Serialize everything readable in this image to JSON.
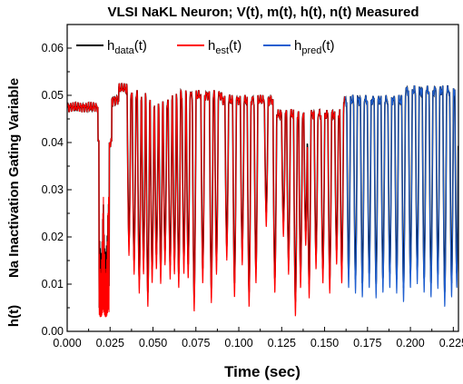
{
  "chart_data": {
    "type": "line",
    "title": "VLSI   NaKL Neuron; V(t), m(t), h(t), n(t) Measured",
    "xlabel": "Time   (sec)",
    "ylabel": "Na Inactivation Gating Variable",
    "ylabel_short": "h(t)",
    "xlim": [
      0.0,
      0.228
    ],
    "ylim": [
      0.0,
      0.065
    ],
    "xticks": [
      "0.000",
      "0.025",
      "0.050",
      "0.075",
      "0.100",
      "0.125",
      "0.150",
      "0.175",
      "0.200",
      "0.225"
    ],
    "yticks": [
      "0.00",
      "0.01",
      "0.02",
      "0.03",
      "0.04",
      "0.05",
      "0.06"
    ],
    "legend": {
      "position": "top-left",
      "entries": [
        {
          "base": "h",
          "sub": "data",
          "suffix": "(t)",
          "color": "#000000"
        },
        {
          "base": "h",
          "sub": "est",
          "suffix": "(t)",
          "color": "#ff0000"
        },
        {
          "base": "h",
          "sub": "pred",
          "suffix": "(t)",
          "color": "#1f5fd0"
        }
      ]
    },
    "series": [
      {
        "key": "data",
        "color": "#000000",
        "x_range": [
          0.0,
          0.228
        ]
      },
      {
        "key": "est",
        "color": "#ff0000",
        "x_range": [
          0.0,
          0.162
        ]
      },
      {
        "key": "pred",
        "color": "#1f5fd0",
        "x_range": [
          0.162,
          0.228
        ]
      }
    ],
    "baseline_segments": [
      {
        "t0": 0.0,
        "t1": 0.018,
        "level": 0.0475
      },
      {
        "t0": 0.018,
        "t1": 0.026,
        "level": 0.04
      },
      {
        "t0": 0.026,
        "t1": 0.03,
        "level": 0.049
      },
      {
        "t0": 0.03,
        "t1": 0.036,
        "level": 0.0515
      },
      {
        "t0": 0.036,
        "t1": 0.046,
        "level": 0.05
      },
      {
        "t0": 0.046,
        "t1": 0.06,
        "level": 0.048
      },
      {
        "t0": 0.06,
        "t1": 0.09,
        "level": 0.05
      },
      {
        "t0": 0.09,
        "t1": 0.12,
        "level": 0.049
      },
      {
        "t0": 0.12,
        "t1": 0.16,
        "level": 0.046
      },
      {
        "t0": 0.16,
        "t1": 0.195,
        "level": 0.049
      },
      {
        "t0": 0.195,
        "t1": 0.228,
        "level": 0.051
      }
    ],
    "spikes": [
      {
        "t": 0.036,
        "min": 0.016
      },
      {
        "t": 0.039,
        "min": 0.012
      },
      {
        "t": 0.042,
        "min": 0.008
      },
      {
        "t": 0.0445,
        "min": 0.012
      },
      {
        "t": 0.047,
        "min": 0.005
      },
      {
        "t": 0.0495,
        "min": 0.01
      },
      {
        "t": 0.052,
        "min": 0.013
      },
      {
        "t": 0.0545,
        "min": 0.01
      },
      {
        "t": 0.057,
        "min": 0.014
      },
      {
        "t": 0.06,
        "min": 0.011
      },
      {
        "t": 0.0625,
        "min": 0.012
      },
      {
        "t": 0.065,
        "min": 0.009
      },
      {
        "t": 0.068,
        "min": 0.012
      },
      {
        "t": 0.0705,
        "min": 0.011
      },
      {
        "t": 0.074,
        "min": 0.004
      },
      {
        "t": 0.079,
        "min": 0.01
      },
      {
        "t": 0.084,
        "min": 0.006
      },
      {
        "t": 0.087,
        "min": 0.012
      },
      {
        "t": 0.093,
        "min": 0.015
      },
      {
        "t": 0.0975,
        "min": 0.007
      },
      {
        "t": 0.102,
        "min": 0.014
      },
      {
        "t": 0.106,
        "min": 0.005
      },
      {
        "t": 0.11,
        "min": 0.01
      },
      {
        "t": 0.116,
        "min": 0.022
      },
      {
        "t": 0.121,
        "min": 0.008
      },
      {
        "t": 0.126,
        "min": 0.02
      },
      {
        "t": 0.129,
        "min": 0.012
      },
      {
        "t": 0.133,
        "min": 0.003
      },
      {
        "t": 0.136,
        "min": 0.009
      },
      {
        "t": 0.139,
        "min": 0.018
      },
      {
        "t": 0.141,
        "min": 0.007
      },
      {
        "t": 0.145,
        "min": 0.013
      },
      {
        "t": 0.149,
        "min": 0.01
      },
      {
        "t": 0.153,
        "min": 0.008
      },
      {
        "t": 0.157,
        "min": 0.014
      },
      {
        "t": 0.16,
        "min": 0.01
      },
      {
        "t": 0.164,
        "min": 0.009
      },
      {
        "t": 0.168,
        "min": 0.008
      },
      {
        "t": 0.172,
        "min": 0.007
      },
      {
        "t": 0.176,
        "min": 0.009
      },
      {
        "t": 0.18,
        "min": 0.007
      },
      {
        "t": 0.184,
        "min": 0.008
      },
      {
        "t": 0.188,
        "min": 0.009
      },
      {
        "t": 0.192,
        "min": 0.008
      },
      {
        "t": 0.196,
        "min": 0.006
      },
      {
        "t": 0.2,
        "min": 0.009
      },
      {
        "t": 0.204,
        "min": 0.01
      },
      {
        "t": 0.208,
        "min": 0.008
      },
      {
        "t": 0.212,
        "min": 0.007
      },
      {
        "t": 0.216,
        "min": 0.009
      },
      {
        "t": 0.22,
        "min": 0.005
      },
      {
        "t": 0.224,
        "min": 0.007
      },
      {
        "t": 0.227,
        "min": 0.009
      }
    ],
    "burst": {
      "t0": 0.0185,
      "t1": 0.0245,
      "n": 16,
      "min_data": 0.007,
      "min_est": 0.003
    }
  }
}
